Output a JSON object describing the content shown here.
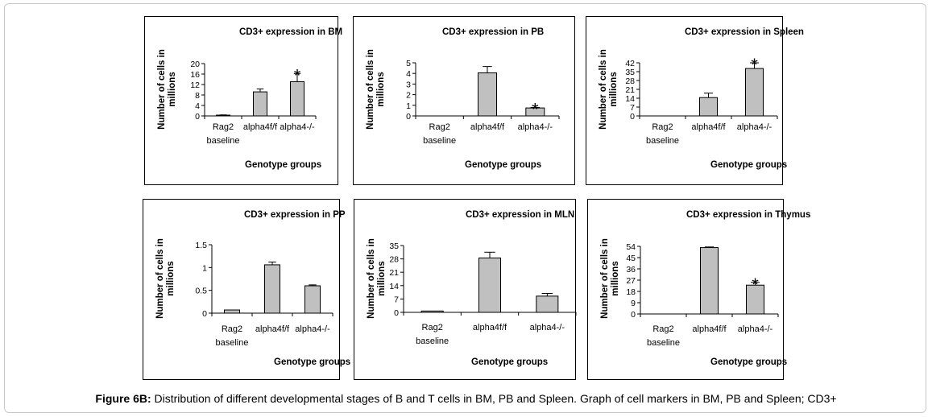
{
  "caption": {
    "label": "Figure 6B:",
    "text": " Distribution of different developmental stages of B and T cells in BM, PB and Spleen. Graph of cell markers in BM, PB and Spleen; CD3+"
  },
  "colors": {
    "bar_fill": "#c0c0c0",
    "bar_stroke": "#000000",
    "border": "#000000"
  },
  "chart_data": [
    {
      "type": "bar",
      "title": "CD3+ expression in BM",
      "ylabel": [
        "Number of cells in",
        "millions"
      ],
      "xlabel": "Genotype groups",
      "categories": [
        [
          "Rag2",
          "baseline"
        ],
        [
          "alpha4f/f"
        ],
        [
          "alpha4-/-"
        ]
      ],
      "values": [
        0.3,
        9.2,
        13.1
      ],
      "errors": [
        0.1,
        1.1,
        3.1
      ],
      "yticks": [
        0,
        4,
        8,
        12,
        16,
        20
      ],
      "ylim": [
        0,
        20
      ],
      "significant": [
        false,
        false,
        true
      ],
      "grid": false
    },
    {
      "type": "bar",
      "title": "CD3+ expression in PB",
      "ylabel": [
        "Number of cells in",
        "millions"
      ],
      "xlabel": "Genotype groups",
      "categories": [
        [
          "Rag2",
          "baseline"
        ],
        [
          "alpha4f/f"
        ],
        [
          "alpha4-/-"
        ]
      ],
      "values": [
        0,
        4.05,
        0.75
      ],
      "errors": [
        0,
        0.6,
        0.05
      ],
      "yticks": [
        0,
        1,
        2,
        3,
        4,
        5
      ],
      "ylim": [
        0,
        5
      ],
      "significant": [
        false,
        false,
        true
      ],
      "grid": false
    },
    {
      "type": "bar",
      "title": "CD3+ expression in Spleen",
      "ylabel": [
        "Number of cells in",
        "millions"
      ],
      "xlabel": "Genotype groups",
      "categories": [
        [
          "Rag2",
          "baseline"
        ],
        [
          "alpha4f/f"
        ],
        [
          "alpha4-/-"
        ]
      ],
      "values": [
        0,
        14.5,
        37.5
      ],
      "errors": [
        0,
        3.5,
        4.5
      ],
      "yticks": [
        0,
        7,
        14,
        21,
        28,
        35,
        42
      ],
      "ylim": [
        0,
        42
      ],
      "significant": [
        false,
        false,
        true
      ],
      "grid": false
    },
    {
      "type": "bar",
      "title": "CD3+ expression in PP",
      "ylabel": [
        "Number of cells in",
        "millions"
      ],
      "xlabel": "Genotype groups",
      "categories": [
        [
          "Rag2",
          "baseline"
        ],
        [
          "alpha4f/f"
        ],
        [
          "alpha4-/-"
        ]
      ],
      "values": [
        0.07,
        1.06,
        0.6
      ],
      "errors": [
        0,
        0.06,
        0.02
      ],
      "yticks": [
        "0",
        "0.5",
        "1",
        "1.5"
      ],
      "ylim": [
        0,
        1.5
      ],
      "significant": [
        false,
        false,
        false
      ],
      "grid": false
    },
    {
      "type": "bar",
      "title": "CD3+ expression in MLN",
      "ylabel": [
        "Number of cells in",
        "millions"
      ],
      "xlabel": "Genotype groups",
      "categories": [
        [
          "Rag2",
          "baseline"
        ],
        [
          "alpha4f/f"
        ],
        [
          "alpha4-/-"
        ]
      ],
      "values": [
        0.7,
        28.5,
        8.5
      ],
      "errors": [
        0,
        3.0,
        1.4
      ],
      "yticks": [
        0,
        7,
        14,
        21,
        28,
        35
      ],
      "ylim": [
        0,
        35
      ],
      "significant": [
        false,
        false,
        false
      ],
      "grid": false
    },
    {
      "type": "bar",
      "title": "CD3+ expression in Thymus",
      "ylabel": [
        "Number of cells in",
        "millions"
      ],
      "xlabel": "Genotype groups",
      "categories": [
        [
          "Rag2",
          "baseline"
        ],
        [
          "alpha4f/f"
        ],
        [
          "alpha4-/-"
        ]
      ],
      "values": [
        0,
        53,
        23
      ],
      "errors": [
        0,
        0.5,
        2.2
      ],
      "yticks": [
        0,
        9,
        18,
        27,
        36,
        45,
        54
      ],
      "ylim": [
        0,
        54
      ],
      "significant": [
        false,
        false,
        true
      ],
      "grid": false
    }
  ]
}
